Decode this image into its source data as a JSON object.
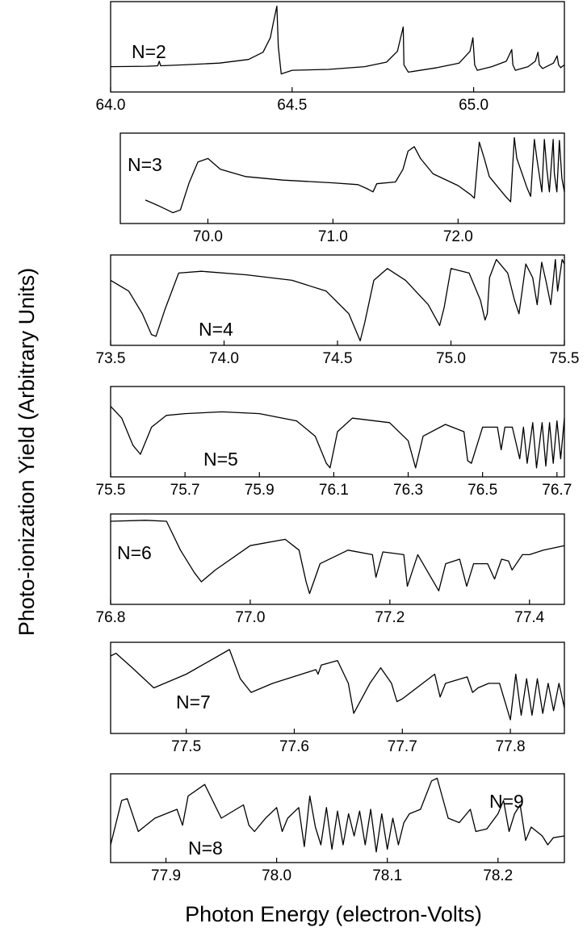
{
  "chart_data": {
    "type": "line",
    "ylabel": "Photo-ionization Yield (Arbitrary Units)",
    "xlabel": "Photon Energy (electron-Volts)",
    "panels": [
      {
        "label": "N=2",
        "xlim": [
          64.0,
          65.25
        ],
        "ylim": [
          0,
          1
        ],
        "ticks": [
          64.0,
          64.5,
          65.0
        ],
        "tick_labels": [
          "64.0",
          "64.5",
          "65.0"
        ],
        "series": [
          {
            "x": [
              64.0,
              64.1,
              64.13,
              64.134,
              64.138,
              64.2,
              64.3,
              64.38,
              64.42,
              64.44,
              64.45,
              64.458,
              64.462,
              64.47,
              64.5,
              64.6,
              64.7,
              64.76,
              64.79,
              64.8,
              64.806,
              64.808,
              64.82,
              64.9,
              64.96,
              64.99,
              64.998,
              65.003,
              65.01,
              65.05,
              65.09,
              65.105,
              65.108,
              65.115,
              65.15,
              65.17,
              65.177,
              65.181,
              65.19,
              65.22,
              65.23,
              65.234,
              65.24,
              65.25
            ],
            "y": [
              0.28,
              0.285,
              0.29,
              0.34,
              0.29,
              0.3,
              0.32,
              0.36,
              0.44,
              0.6,
              0.8,
              0.95,
              0.5,
              0.2,
              0.24,
              0.25,
              0.28,
              0.33,
              0.45,
              0.62,
              0.72,
              0.3,
              0.22,
              0.27,
              0.32,
              0.45,
              0.6,
              0.3,
              0.24,
              0.28,
              0.34,
              0.47,
              0.3,
              0.24,
              0.28,
              0.34,
              0.44,
              0.3,
              0.26,
              0.32,
              0.4,
              0.3,
              0.27,
              0.3
            ]
          }
        ]
      },
      {
        "label": "N=3",
        "xlim": [
          69.3,
          72.85
        ],
        "ylim": [
          0,
          1
        ],
        "ticks": [
          70.0,
          71.0,
          72.0
        ],
        "tick_labels": [
          "70.0",
          "71.0",
          "72.0"
        ],
        "series": [
          {
            "x": [
              69.5,
              69.6,
              69.72,
              69.78,
              69.85,
              69.92,
              70.0,
              70.1,
              70.3,
              70.6,
              71.0,
              71.2,
              71.28,
              71.32,
              71.35,
              71.5,
              71.56,
              71.6,
              71.65,
              71.7,
              71.8,
              72.0,
              72.1,
              72.13,
              72.17,
              72.21,
              72.25,
              72.32,
              72.38,
              72.42,
              72.45,
              72.47,
              72.55,
              72.58,
              72.61,
              72.63,
              72.67,
              72.69,
              72.71,
              72.73,
              72.76,
              72.77,
              72.79,
              72.81,
              72.83,
              72.85
            ],
            "y": [
              0.26,
              0.2,
              0.12,
              0.15,
              0.45,
              0.68,
              0.72,
              0.6,
              0.52,
              0.48,
              0.45,
              0.43,
              0.38,
              0.35,
              0.44,
              0.46,
              0.6,
              0.8,
              0.85,
              0.72,
              0.55,
              0.42,
              0.32,
              0.28,
              0.9,
              0.72,
              0.52,
              0.4,
              0.3,
              0.24,
              0.95,
              0.72,
              0.4,
              0.3,
              0.93,
              0.72,
              0.35,
              0.93,
              0.6,
              0.35,
              0.93,
              0.55,
              0.35,
              0.92,
              0.5,
              0.35
            ]
          }
        ]
      },
      {
        "label": "N=4",
        "xlim": [
          73.5,
          75.5
        ],
        "ylim": [
          0,
          1
        ],
        "ticks": [
          73.5,
          74.0,
          74.5,
          75.0,
          75.5
        ],
        "tick_labels": [
          "73.5",
          "74.0",
          "74.5",
          "75.0",
          "75.5"
        ],
        "series": [
          {
            "x": [
              73.5,
              73.58,
              73.64,
              73.68,
              73.7,
              73.74,
              73.8,
              73.9,
              74.1,
              74.3,
              74.45,
              74.55,
              74.6,
              74.62,
              74.66,
              74.72,
              74.8,
              74.9,
              74.95,
              74.97,
              75.0,
              75.08,
              75.13,
              75.15,
              75.16,
              75.17,
              75.2,
              75.25,
              75.28,
              75.3,
              75.33,
              75.36,
              75.38,
              75.4,
              75.42,
              75.44,
              75.46,
              75.47,
              75.49,
              75.5
            ],
            "y": [
              0.72,
              0.6,
              0.35,
              0.12,
              0.1,
              0.4,
              0.8,
              0.82,
              0.78,
              0.72,
              0.6,
              0.35,
              0.05,
              0.25,
              0.72,
              0.85,
              0.72,
              0.45,
              0.22,
              0.42,
              0.85,
              0.8,
              0.5,
              0.28,
              0.35,
              0.75,
              0.95,
              0.8,
              0.5,
              0.35,
              0.9,
              0.75,
              0.45,
              0.92,
              0.7,
              0.45,
              0.95,
              0.6,
              0.95,
              0.9
            ]
          }
        ]
      },
      {
        "label": "N=5",
        "xlim": [
          75.5,
          76.72
        ],
        "ylim": [
          0,
          1
        ],
        "ticks": [
          75.5,
          75.7,
          75.9,
          76.1,
          76.3,
          76.5,
          76.7
        ],
        "tick_labels": [
          "75.5",
          "75.7",
          "75.9",
          "76.1",
          "76.3",
          "76.5",
          "76.7"
        ],
        "series": [
          {
            "x": [
              75.5,
              75.53,
              75.56,
              75.58,
              75.61,
              75.65,
              75.7,
              75.8,
              75.9,
              76.0,
              76.05,
              76.08,
              76.09,
              76.11,
              76.15,
              76.25,
              76.3,
              76.32,
              76.34,
              76.4,
              76.45,
              76.46,
              76.47,
              76.5,
              76.54,
              76.55,
              76.56,
              76.58,
              76.6,
              76.61,
              76.62,
              76.635,
              76.645,
              76.66,
              76.67,
              76.68,
              76.69,
              76.7,
              76.71,
              76.72
            ],
            "y": [
              0.78,
              0.65,
              0.35,
              0.25,
              0.55,
              0.68,
              0.7,
              0.72,
              0.7,
              0.62,
              0.45,
              0.15,
              0.1,
              0.5,
              0.65,
              0.6,
              0.4,
              0.1,
              0.45,
              0.58,
              0.5,
              0.18,
              0.15,
              0.55,
              0.55,
              0.3,
              0.55,
              0.55,
              0.2,
              0.55,
              0.15,
              0.6,
              0.1,
              0.6,
              0.12,
              0.6,
              0.15,
              0.62,
              0.2,
              0.65
            ]
          }
        ]
      },
      {
        "label": "N=6",
        "xlim": [
          76.8,
          77.45
        ],
        "ylim": [
          0,
          1
        ],
        "ticks": [
          76.8,
          77.0,
          77.2,
          77.4
        ],
        "tick_labels": [
          "76.8",
          "77.0",
          "77.2",
          "77.4"
        ],
        "series": [
          {
            "x": [
              76.8,
              76.85,
              76.88,
              76.9,
              76.92,
              76.93,
              76.95,
              77.0,
              77.05,
              77.07,
              77.08,
              77.085,
              77.1,
              77.14,
              77.175,
              77.18,
              77.19,
              77.22,
              77.225,
              77.24,
              77.27,
              77.28,
              77.3,
              77.31,
              77.32,
              77.34,
              77.35,
              77.36,
              77.37,
              77.375,
              77.39,
              77.4,
              77.42,
              77.45
            ],
            "y": [
              0.92,
              0.93,
              0.92,
              0.6,
              0.35,
              0.25,
              0.38,
              0.65,
              0.72,
              0.6,
              0.25,
              0.12,
              0.45,
              0.6,
              0.55,
              0.3,
              0.58,
              0.55,
              0.2,
              0.55,
              0.15,
              0.45,
              0.5,
              0.2,
              0.45,
              0.45,
              0.28,
              0.5,
              0.48,
              0.38,
              0.55,
              0.55,
              0.6,
              0.65
            ]
          }
        ]
      },
      {
        "label": "N=7",
        "xlim": [
          77.43,
          77.85
        ],
        "ylim": [
          0,
          1
        ],
        "ticks": [
          77.5,
          77.6,
          77.7,
          77.8
        ],
        "tick_labels": [
          "77.5",
          "77.6",
          "77.7",
          "77.8"
        ],
        "series": [
          {
            "x": [
              77.43,
              77.435,
              77.45,
              77.47,
              77.5,
              77.54,
              77.55,
              77.56,
              77.58,
              77.62,
              77.622,
              77.625,
              77.64,
              77.65,
              77.655,
              77.67,
              77.68,
              77.69,
              77.695,
              77.7,
              77.73,
              77.735,
              77.74,
              77.76,
              77.765,
              77.77,
              77.78,
              77.79,
              77.8,
              77.805,
              77.81,
              77.815,
              77.82,
              77.825,
              77.83,
              77.835,
              77.84,
              77.845,
              77.85
            ],
            "y": [
              0.85,
              0.88,
              0.72,
              0.5,
              0.65,
              0.92,
              0.6,
              0.45,
              0.55,
              0.7,
              0.65,
              0.75,
              0.8,
              0.55,
              0.22,
              0.55,
              0.72,
              0.55,
              0.35,
              0.38,
              0.65,
              0.4,
              0.55,
              0.62,
              0.45,
              0.5,
              0.55,
              0.55,
              0.15,
              0.65,
              0.2,
              0.6,
              0.2,
              0.6,
              0.22,
              0.55,
              0.25,
              0.55,
              0.28
            ]
          }
        ]
      },
      {
        "label": "N=8",
        "label2": "N=9",
        "xlim": [
          77.85,
          78.26
        ],
        "ylim": [
          0,
          1
        ],
        "ticks": [
          77.9,
          78.0,
          78.1,
          78.2
        ],
        "tick_labels": [
          "77.9",
          "78.0",
          "78.1",
          "78.2"
        ],
        "series": [
          {
            "x": [
              77.85,
              77.86,
              77.865,
              77.875,
              77.89,
              77.91,
              77.915,
              77.92,
              77.935,
              77.95,
              77.97,
              77.975,
              77.98,
              77.99,
              78.0,
              78.005,
              78.01,
              78.02,
              78.025,
              78.03,
              78.035,
              78.04,
              78.045,
              78.05,
              78.055,
              78.06,
              78.065,
              78.07,
              78.075,
              78.08,
              78.085,
              78.09,
              78.095,
              78.1,
              78.105,
              78.11,
              78.115,
              78.12,
              78.13,
              78.14,
              78.145,
              78.155,
              78.165,
              78.175,
              78.18,
              78.19,
              78.2,
              78.205,
              78.21,
              78.215,
              78.22,
              78.225,
              78.23,
              78.24,
              78.245,
              78.25,
              78.26
            ],
            "y": [
              0.2,
              0.7,
              0.72,
              0.35,
              0.5,
              0.6,
              0.42,
              0.75,
              0.88,
              0.5,
              0.65,
              0.42,
              0.35,
              0.5,
              0.62,
              0.35,
              0.5,
              0.62,
              0.18,
              0.75,
              0.4,
              0.2,
              0.62,
              0.15,
              0.58,
              0.2,
              0.55,
              0.3,
              0.58,
              0.2,
              0.6,
              0.12,
              0.55,
              0.15,
              0.5,
              0.2,
              0.45,
              0.55,
              0.6,
              0.92,
              0.95,
              0.5,
              0.45,
              0.6,
              0.35,
              0.38,
              0.55,
              0.7,
              0.35,
              0.55,
              0.65,
              0.25,
              0.4,
              0.3,
              0.2,
              0.28,
              0.3
            ]
          }
        ]
      }
    ]
  }
}
